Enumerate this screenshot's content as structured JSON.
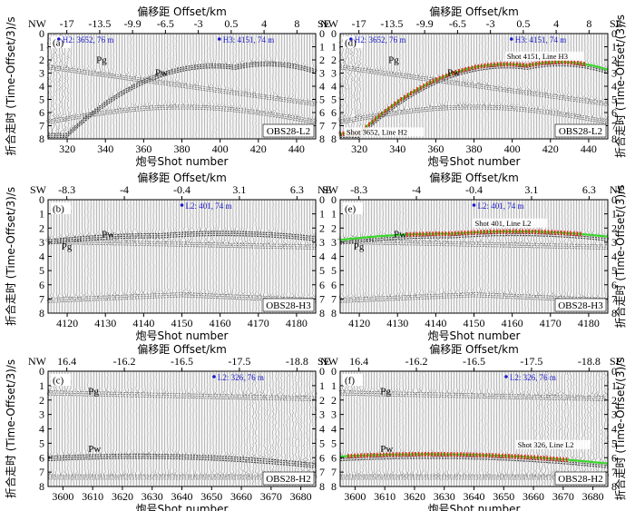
{
  "figure": {
    "top_axis_label": "偏移距 Offset/km",
    "bottom_axis_label": "炮号Shot number",
    "y_axis_label_left": "折合走时 (Time-Offset/3)/s",
    "y_axis_label_right": "折合走时 (Time-Offset/(3)/s",
    "y_ticks": [
      "0",
      "1",
      "2",
      "3",
      "4",
      "5",
      "6",
      "7",
      "8"
    ],
    "colors": {
      "pick_red": "#e8261e",
      "calc_green": "#39d62b",
      "station_blue": "#1a1acc"
    }
  },
  "panels": [
    {
      "id": "a",
      "label": "(a)",
      "dir_left": "NW",
      "dir_right": "SE",
      "offsets": [
        "-17",
        "-13.5",
        "-9.9",
        "-6.5",
        "-3",
        "0.5",
        "4",
        "8"
      ],
      "shots": [
        "320",
        "340",
        "360",
        "380",
        "400",
        "420",
        "440"
      ],
      "station": "OBS28-L2",
      "markers": [
        "H2: 3652, 76 m",
        "H3: 4151, 74 m"
      ],
      "phases": [
        "Pg",
        "Pw"
      ],
      "picks": false
    },
    {
      "id": "d",
      "label": "(d)",
      "dir_left": "NW",
      "dir_right": "SE",
      "offsets": [
        "-17",
        "-13.5",
        "-9.9",
        "-6.5",
        "-3",
        "0.5",
        "4",
        "8"
      ],
      "shots": [
        "320",
        "340",
        "360",
        "380",
        "400",
        "420",
        "440"
      ],
      "station": "OBS28-L2",
      "markers": [
        "H2: 3652, 76 m",
        "H3: 4151, 74 m"
      ],
      "phases": [
        "Pg",
        "Pw"
      ],
      "annotations": [
        "Shot 4151, Line H3",
        "Shot 3652, Line H2"
      ],
      "picks": true
    },
    {
      "id": "b",
      "label": "(b)",
      "dir_left": "SW",
      "dir_right": "NE",
      "offsets": [
        "-8.3",
        "-4",
        "-0.4",
        "3.1",
        "6.3"
      ],
      "shots": [
        "4120",
        "4130",
        "4140",
        "4150",
        "4160",
        "4170",
        "4180"
      ],
      "station": "OBS28-H3",
      "markers": [
        "L2: 401, 74 m"
      ],
      "phases": [
        "Pg",
        "Pw"
      ],
      "picks": false
    },
    {
      "id": "e",
      "label": "(e)",
      "dir_left": "SW",
      "dir_right": "NE",
      "offsets": [
        "-8.3",
        "-4",
        "-0.4",
        "3.1",
        "6.3"
      ],
      "shots": [
        "4120",
        "4130",
        "4140",
        "4150",
        "4160",
        "4170",
        "4180"
      ],
      "station": "OBS28-H3",
      "markers": [
        "L2: 401, 74 m"
      ],
      "phases": [
        "Pg",
        "Pw"
      ],
      "annotations": [
        "Shot 401, Line L2"
      ],
      "picks": true
    },
    {
      "id": "c",
      "label": "(c)",
      "dir_left": "NW",
      "dir_right": "SE",
      "offsets": [
        "16.4",
        "-16.2",
        "-16.5",
        "-17.5",
        "-18.8"
      ],
      "shots": [
        "3600",
        "3610",
        "3620",
        "3630",
        "3640",
        "3650",
        "3660",
        "3670",
        "3680"
      ],
      "station": "OBS28-H2",
      "markers": [
        "L2: 326, 76 m"
      ],
      "phases": [
        "Pg",
        "Pw"
      ],
      "picks": false
    },
    {
      "id": "f",
      "label": "(f)",
      "dir_left": "NW",
      "dir_right": "SE",
      "offsets": [
        "16.4",
        "-16.2",
        "-16.5",
        "-17.5",
        "-18.8"
      ],
      "shots": [
        "3600",
        "3610",
        "3620",
        "3630",
        "3640",
        "3650",
        "3660",
        "3670",
        "3680"
      ],
      "station": "OBS28-H2",
      "markers": [
        "L2: 326, 76 m"
      ],
      "phases": [
        "Pg",
        "Pw"
      ],
      "annotations": [
        "Shot 326, Line L2"
      ],
      "picks": true
    }
  ]
}
